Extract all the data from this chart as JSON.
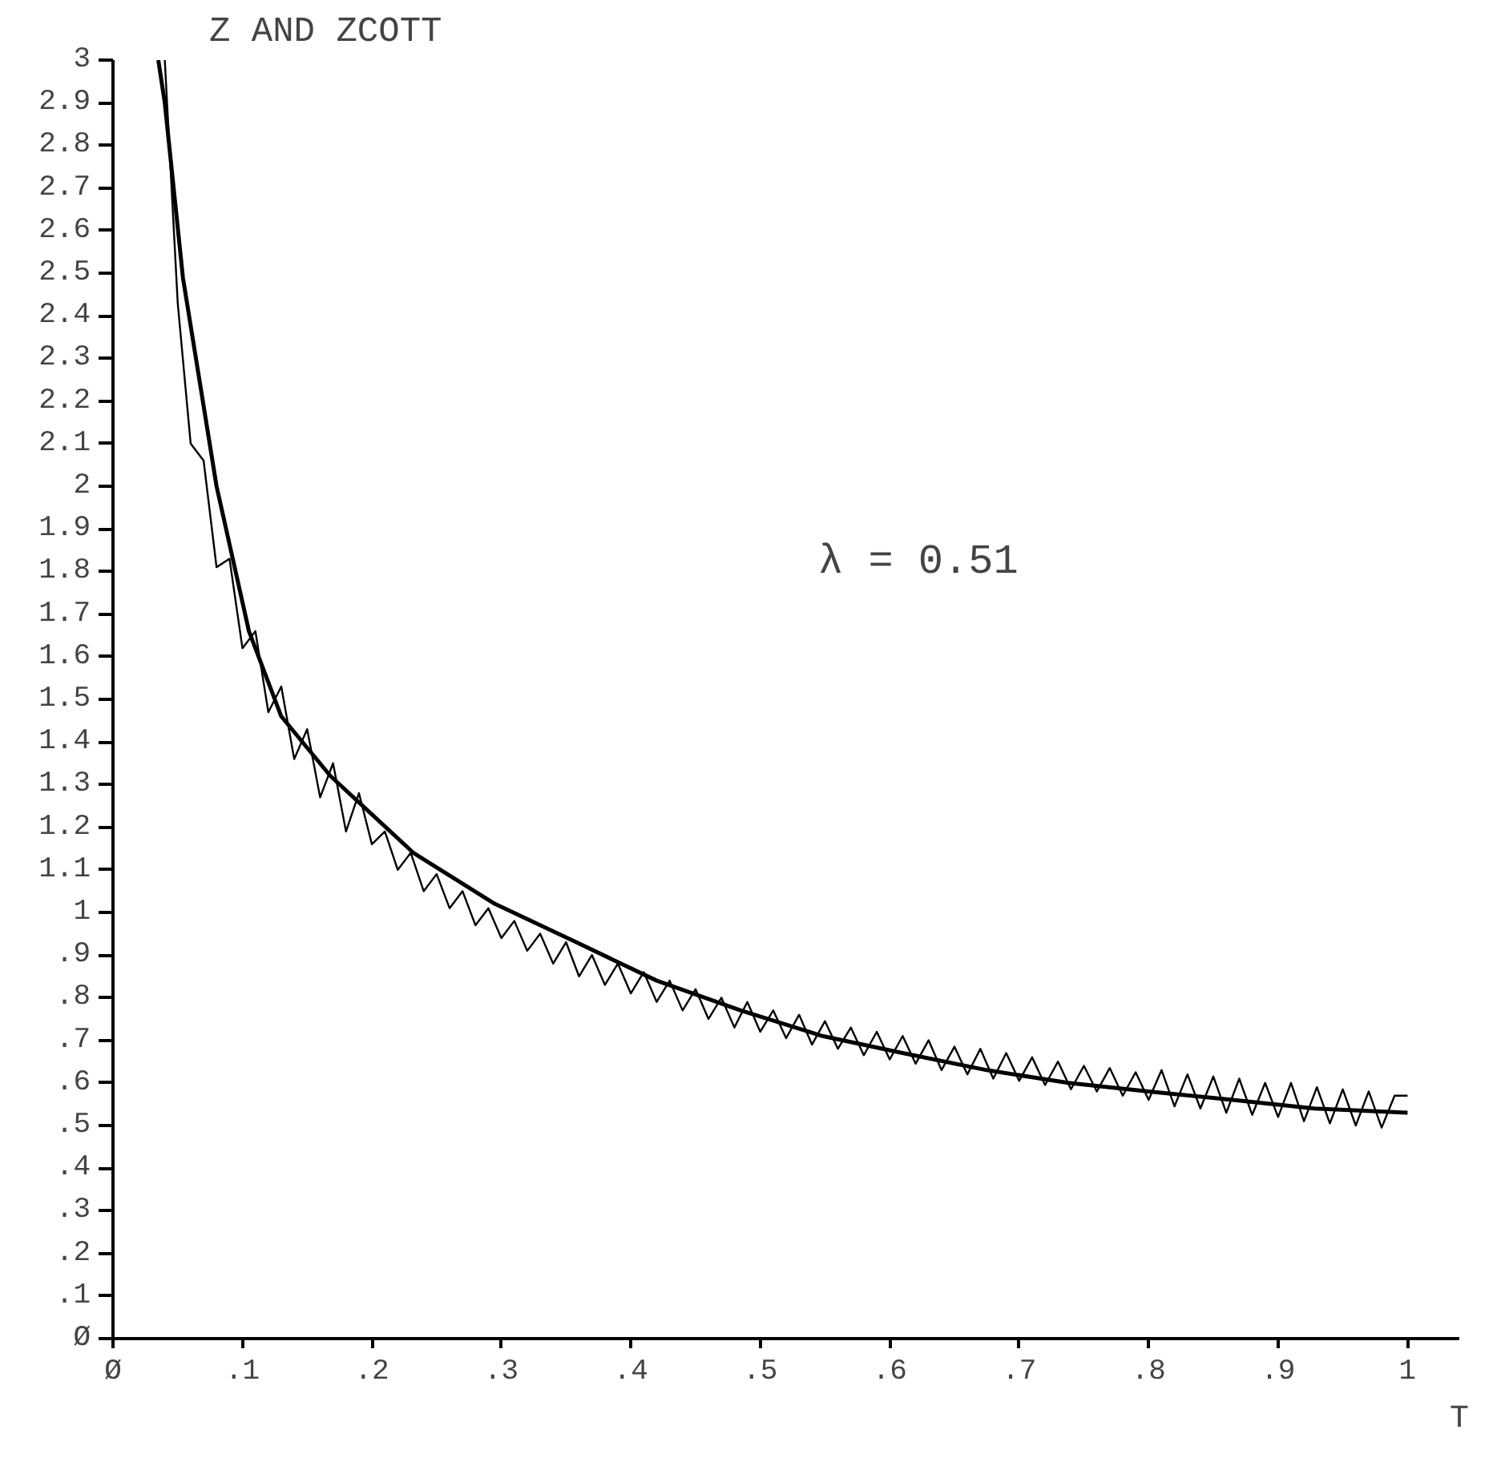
{
  "chart_data": {
    "type": "line",
    "title": "Z AND ZCOTT",
    "xlabel": "T",
    "annotations": [
      "λ = 0.51"
    ],
    "xlim": [
      0,
      1.04
    ],
    "ylim": [
      0,
      3
    ],
    "xticks": [
      {
        "value": 0,
        "label": "Ø"
      },
      {
        "value": 0.1,
        "label": ".1"
      },
      {
        "value": 0.2,
        "label": ".2"
      },
      {
        "value": 0.3,
        "label": ".3"
      },
      {
        "value": 0.4,
        "label": ".4"
      },
      {
        "value": 0.5,
        "label": ".5"
      },
      {
        "value": 0.6,
        "label": ".6"
      },
      {
        "value": 0.7,
        "label": ".7"
      },
      {
        "value": 0.8,
        "label": ".8"
      },
      {
        "value": 0.9,
        "label": ".9"
      },
      1
    ],
    "yticks": [
      {
        "value": 0,
        "label": "Ø"
      },
      {
        "value": 0.1,
        "label": ".1"
      },
      {
        "value": 0.2,
        "label": ".2"
      },
      {
        "value": 0.3,
        "label": ".3"
      },
      {
        "value": 0.4,
        "label": ".4"
      },
      {
        "value": 0.5,
        "label": ".5"
      },
      {
        "value": 0.6,
        "label": ".6"
      },
      {
        "value": 0.7,
        "label": ".7"
      },
      {
        "value": 0.8,
        "label": ".8"
      },
      {
        "value": 0.9,
        "label": ".9"
      },
      1,
      1.1,
      1.2,
      1.3,
      1.4,
      1.5,
      1.6,
      1.7,
      1.8,
      1.9,
      2,
      2.1,
      2.2,
      2.3,
      2.4,
      2.5,
      2.6,
      2.7,
      2.8,
      2.9,
      3
    ],
    "grid": false,
    "marker": "none",
    "line_style": "solid",
    "series": [
      {
        "color": "#000000",
        "x": [
          0.035,
          0.04,
          0.054,
          0.08,
          0.105,
          0.13,
          0.168,
          0.232,
          0.295,
          0.358,
          0.42,
          0.485,
          0.548,
          0.61,
          0.675,
          0.738,
          0.8,
          0.865,
          0.928,
          1.0
        ],
        "values": [
          3.0,
          2.9,
          2.49,
          2.0,
          1.66,
          1.46,
          1.32,
          1.14,
          1.02,
          0.93,
          0.84,
          0.77,
          0.71,
          0.67,
          0.63,
          0.6,
          0.58,
          0.56,
          0.54,
          0.53
        ]
      },
      {
        "color": "#000000",
        "x": [
          0.04,
          0.05,
          0.06,
          0.07,
          0.08,
          0.09,
          0.1,
          0.11,
          0.12,
          0.13,
          0.14,
          0.15,
          0.16,
          0.17,
          0.18,
          0.19,
          0.2,
          0.21,
          0.22,
          0.23,
          0.24,
          0.25,
          0.26,
          0.27,
          0.28,
          0.29,
          0.3,
          0.31,
          0.32,
          0.33,
          0.34,
          0.35,
          0.36,
          0.37,
          0.38,
          0.39,
          0.4,
          0.41,
          0.42,
          0.43,
          0.44,
          0.45,
          0.46,
          0.47,
          0.48,
          0.49,
          0.5,
          0.51,
          0.52,
          0.53,
          0.54,
          0.55,
          0.56,
          0.57,
          0.58,
          0.59,
          0.6,
          0.61,
          0.62,
          0.63,
          0.64,
          0.65,
          0.66,
          0.67,
          0.68,
          0.69,
          0.7,
          0.71,
          0.72,
          0.73,
          0.74,
          0.75,
          0.76,
          0.77,
          0.78,
          0.79,
          0.8,
          0.81,
          0.82,
          0.83,
          0.84,
          0.85,
          0.86,
          0.87,
          0.88,
          0.89,
          0.9,
          0.91,
          0.92,
          0.93,
          0.94,
          0.95,
          0.96,
          0.97,
          0.98,
          0.99,
          1.0
        ],
        "values": [
          3.0,
          2.43,
          2.1,
          2.06,
          1.81,
          1.83,
          1.62,
          1.66,
          1.47,
          1.53,
          1.36,
          1.43,
          1.27,
          1.35,
          1.19,
          1.28,
          1.16,
          1.19,
          1.1,
          1.14,
          1.05,
          1.09,
          1.01,
          1.05,
          0.97,
          1.01,
          0.94,
          0.98,
          0.91,
          0.95,
          0.88,
          0.93,
          0.85,
          0.9,
          0.83,
          0.88,
          0.81,
          0.86,
          0.79,
          0.84,
          0.77,
          0.82,
          0.75,
          0.8,
          0.73,
          0.79,
          0.72,
          0.77,
          0.705,
          0.76,
          0.69,
          0.745,
          0.68,
          0.73,
          0.665,
          0.72,
          0.655,
          0.71,
          0.645,
          0.7,
          0.63,
          0.685,
          0.62,
          0.68,
          0.61,
          0.67,
          0.605,
          0.66,
          0.595,
          0.65,
          0.585,
          0.64,
          0.58,
          0.635,
          0.57,
          0.625,
          0.56,
          0.63,
          0.545,
          0.62,
          0.54,
          0.615,
          0.53,
          0.61,
          0.525,
          0.6,
          0.52,
          0.6,
          0.51,
          0.59,
          0.505,
          0.585,
          0.5,
          0.58,
          0.495,
          0.57,
          0.57
        ]
      }
    ]
  }
}
